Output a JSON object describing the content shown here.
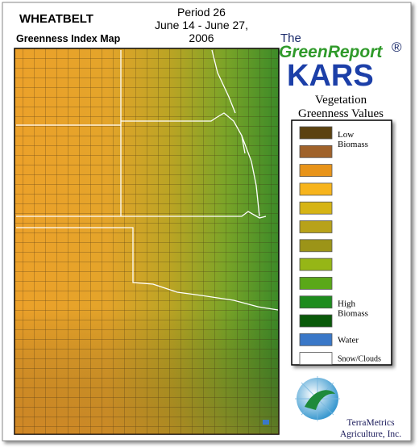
{
  "header": {
    "region": "WHEATBELT",
    "map_title": "Greenness Index Map",
    "period": "Period 26",
    "dates": "June 14 - June 27,",
    "year": "2006"
  },
  "brand": {
    "the": "The",
    "name": "GreenReport",
    "registered": "®",
    "product": "KARS"
  },
  "legend": {
    "title_lines": [
      "Vegetation",
      "Greenness Values"
    ],
    "items": [
      {
        "color": "#5c4210",
        "label": [
          "Low",
          "Biomass"
        ]
      },
      {
        "color": "#a0622a"
      },
      {
        "color": "#e8941a"
      },
      {
        "color": "#f7b41c"
      },
      {
        "color": "#d6b414"
      },
      {
        "color": "#b8a21a"
      },
      {
        "color": "#9c9418"
      },
      {
        "color": "#96b616"
      },
      {
        "color": "#5aa818"
      },
      {
        "color": "#1e8c1e",
        "label": [
          "High",
          "Biomass"
        ]
      },
      {
        "color": "#0a5a0a"
      },
      {
        "color": "#3a78c8",
        "label": [
          "Water"
        ]
      },
      {
        "color": "#ffffff",
        "label": [
          "Snow/Clouds"
        ]
      }
    ]
  },
  "footer": {
    "company_lines": [
      "TerraMetrics",
      "Agriculture, Inc."
    ]
  }
}
